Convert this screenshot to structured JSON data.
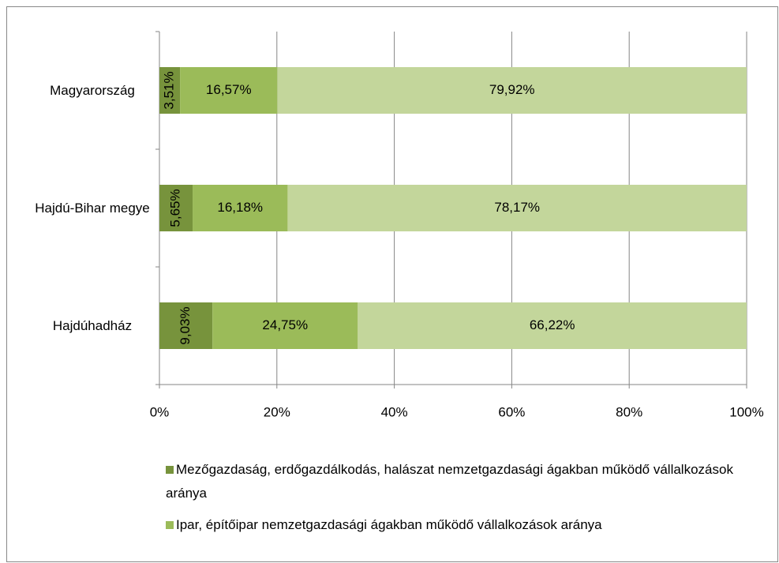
{
  "chart_data": {
    "type": "stacked_bar_horizontal",
    "categories": [
      "Magyarország",
      "Hajdú-Bihar megye",
      "Hajdúhadház"
    ],
    "series": [
      {
        "name": "Mezőgazdaság, erdőgazdálkodás, halászat nemzetgazdasági ágakban működő vállalkozások aránya",
        "color": "#77933c",
        "values": [
          3.51,
          5.65,
          9.03
        ],
        "value_labels": [
          "3,51%",
          "5,65%",
          "9,03%"
        ],
        "label_rotated": true
      },
      {
        "name": "Ipar, építőipar nemzetgazdasági ágakban működő vállalkozások aránya",
        "color": "#9bbb59",
        "values": [
          16.57,
          16.18,
          24.75
        ],
        "value_labels": [
          "16,57%",
          "16,18%",
          "24,75%"
        ]
      },
      {
        "color": "#c3d69b",
        "values": [
          79.92,
          78.17,
          66.22
        ],
        "value_labels": [
          "79,92%",
          "78,17%",
          "66,22%"
        ]
      }
    ],
    "xlim": [
      0,
      100
    ],
    "xticks": [
      {
        "value": 0,
        "label": "0%"
      },
      {
        "value": 20,
        "label": "20%"
      },
      {
        "value": 40,
        "label": "40%"
      },
      {
        "value": 60,
        "label": "60%"
      },
      {
        "value": 80,
        "label": "80%"
      },
      {
        "value": 100,
        "label": "100%"
      }
    ],
    "grid": true
  }
}
